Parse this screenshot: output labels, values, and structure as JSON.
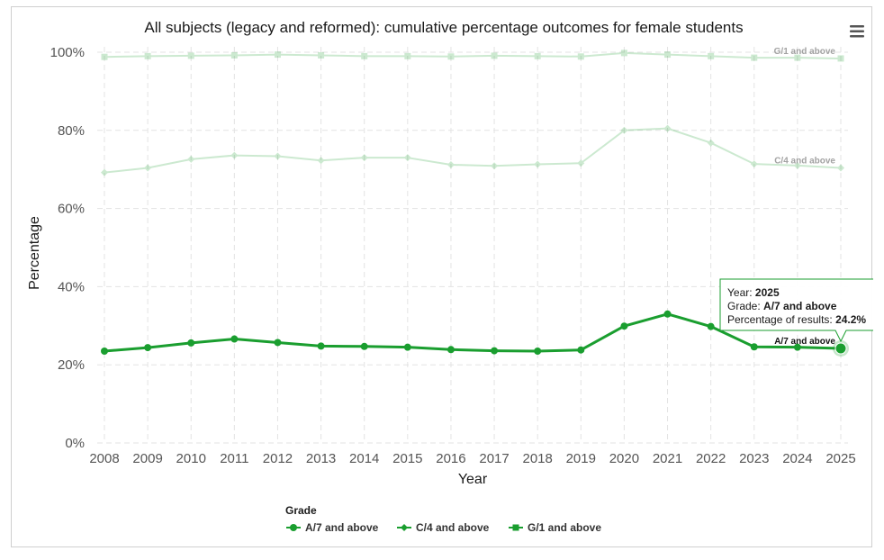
{
  "chart_data": {
    "type": "line",
    "title": "All subjects (legacy and reformed): cumulative percentage outcomes for female students",
    "xlabel": "Year",
    "ylabel": "Percentage",
    "x": [
      "2008",
      "2009",
      "2010",
      "2011",
      "2012",
      "2013",
      "2014",
      "2015",
      "2016",
      "2017",
      "2018",
      "2019",
      "2020",
      "2021",
      "2022",
      "2023",
      "2024",
      "2025"
    ],
    "yticks": [
      "0%",
      "20%",
      "40%",
      "60%",
      "80%",
      "100%"
    ],
    "ylim": [
      0,
      100
    ],
    "grid": true,
    "legend": {
      "title": "Grade",
      "placement": "bottom-center"
    },
    "series": [
      {
        "name": "A/7 and above",
        "color": "#1a9e2f",
        "marker": "circle",
        "highlighted": true,
        "values": [
          23.5,
          24.4,
          25.6,
          26.6,
          25.7,
          24.8,
          24.7,
          24.5,
          23.9,
          23.6,
          23.5,
          23.8,
          29.9,
          33.0,
          29.8,
          24.6,
          24.5,
          24.2
        ]
      },
      {
        "name": "C/4 and above",
        "color": "#1a9e2f",
        "marker": "diamond",
        "highlighted": false,
        "values": [
          69.2,
          70.4,
          72.6,
          73.6,
          73.4,
          72.3,
          73.0,
          73.0,
          71.2,
          70.9,
          71.3,
          71.6,
          80.0,
          80.5,
          76.8,
          71.4,
          71.0,
          70.4
        ]
      },
      {
        "name": "G/1 and above",
        "color": "#1a9e2f",
        "marker": "square",
        "highlighted": false,
        "values": [
          98.8,
          99.0,
          99.1,
          99.2,
          99.4,
          99.2,
          99.0,
          99.0,
          98.9,
          99.1,
          99.0,
          98.9,
          99.8,
          99.4,
          99.0,
          98.6,
          98.6,
          98.4
        ]
      }
    ],
    "tooltip": {
      "year_label": "Year: ",
      "year": "2025",
      "grade_label": "Grade: ",
      "grade": "A/7 and above",
      "value_label": "Percentage of results: ",
      "value": "24.2%"
    }
  },
  "ui": {
    "menu_icon": "hamburger-menu-icon"
  }
}
